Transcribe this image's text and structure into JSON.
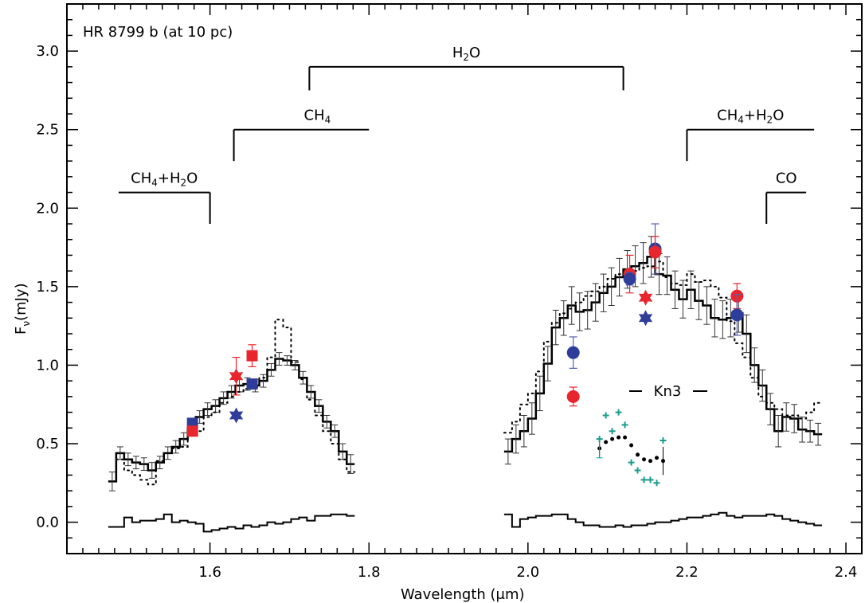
{
  "chart_data": {
    "type": "line",
    "title": "HR 8799 b (at 10 pc)",
    "xlabel": "Wavelength (μm)",
    "ylabel": "Fν(mJy)",
    "xlim": [
      1.42,
      2.42
    ],
    "ylim": [
      -0.2,
      3.3
    ],
    "x_ticks": [
      1.6,
      1.8,
      2.0,
      2.2,
      2.4
    ],
    "x_tick_labels": [
      "1.6",
      "1.8",
      "2.0",
      "2.2",
      "2.4"
    ],
    "y_ticks": [
      0.0,
      0.5,
      1.0,
      1.5,
      2.0,
      2.5,
      3.0
    ],
    "y_tick_labels": [
      "0.0",
      "0.5",
      "1.0",
      "1.5",
      "2.0",
      "2.5",
      "3.0"
    ],
    "grid": false,
    "bands": [
      {
        "label": "H2O",
        "label_parts": [
          "H",
          "2",
          "O"
        ],
        "x_start": 1.725,
        "x_end": 2.12,
        "y": 2.9,
        "tick_ends": [
          1.725,
          2.12
        ],
        "tick_to": 2.75
      },
      {
        "label": "CH4",
        "label_parts": [
          "CH",
          "4",
          ""
        ],
        "x_start": 1.63,
        "x_end": 1.8,
        "y": 2.5,
        "tick_ends": [
          1.63
        ],
        "tick_to": 2.3
      },
      {
        "label": "CH4+H2O",
        "label_parts": [
          "CH",
          "4",
          "+H",
          "2",
          "O"
        ],
        "x_start": 1.485,
        "x_end": 1.6,
        "y": 2.1,
        "tick_ends": [
          1.6
        ],
        "tick_to": 1.9
      },
      {
        "label": "CH4+H2O",
        "label_parts": [
          "CH",
          "4",
          "+H",
          "2",
          "O"
        ],
        "x_start": 2.2,
        "x_end": 2.36,
        "y": 2.5,
        "tick_ends": [
          2.2
        ],
        "tick_to": 2.3
      },
      {
        "label": "CO",
        "label_parts": [
          "CO"
        ],
        "x_start": 2.3,
        "x_end": 2.35,
        "y": 2.1,
        "tick_ends": [
          2.3
        ],
        "tick_to": 1.9
      }
    ],
    "kn3_label": "Kn3",
    "series": [
      {
        "style": "solid-step",
        "segments": [
          {
            "x": [
              1.477,
              1.487,
              1.497,
              1.507,
              1.517,
              1.527,
              1.537,
              1.547,
              1.557,
              1.567,
              1.577,
              1.587,
              1.597,
              1.607,
              1.617,
              1.627,
              1.637,
              1.647,
              1.657,
              1.667,
              1.677,
              1.687,
              1.697,
              1.707,
              1.717,
              1.727,
              1.737,
              1.747,
              1.757,
              1.767,
              1.777
            ],
            "y": [
              0.26,
              0.44,
              0.4,
              0.38,
              0.37,
              0.33,
              0.38,
              0.44,
              0.48,
              0.53,
              0.6,
              0.67,
              0.72,
              0.74,
              0.79,
              0.83,
              0.87,
              0.88,
              0.87,
              0.9,
              0.97,
              1.04,
              1.03,
              1.0,
              0.92,
              0.83,
              0.74,
              0.64,
              0.58,
              0.45,
              0.37
            ],
            "err": [
              0.06,
              0.04,
              0.04,
              0.04,
              0.04,
              0.05,
              0.04,
              0.04,
              0.04,
              0.04,
              0.04,
              0.04,
              0.04,
              0.04,
              0.04,
              0.04,
              0.04,
              0.04,
              0.04,
              0.04,
              0.04,
              0.04,
              0.03,
              0.03,
              0.04,
              0.04,
              0.04,
              0.04,
              0.04,
              0.05,
              0.06
            ]
          },
          {
            "x": [
              1.975,
              1.985,
              1.995,
              2.005,
              2.015,
              2.025,
              2.035,
              2.045,
              2.055,
              2.065,
              2.075,
              2.085,
              2.095,
              2.105,
              2.115,
              2.125,
              2.135,
              2.145,
              2.155,
              2.165,
              2.175,
              2.185,
              2.195,
              2.205,
              2.215,
              2.225,
              2.235,
              2.245,
              2.255,
              2.265,
              2.275,
              2.285,
              2.295,
              2.305,
              2.315,
              2.325,
              2.335,
              2.345,
              2.355,
              2.365
            ],
            "y": [
              0.45,
              0.53,
              0.58,
              0.66,
              0.82,
              1.01,
              1.24,
              1.3,
              1.38,
              1.34,
              1.35,
              1.4,
              1.46,
              1.5,
              1.56,
              1.61,
              1.63,
              1.65,
              1.69,
              1.58,
              1.57,
              1.48,
              1.42,
              1.48,
              1.41,
              1.38,
              1.3,
              1.29,
              1.3,
              1.33,
              1.2,
              1.0,
              0.87,
              0.72,
              0.58,
              0.67,
              0.66,
              0.59,
              0.58,
              0.56
            ],
            "err": [
              0.08,
              0.09,
              0.1,
              0.1,
              0.11,
              0.11,
              0.11,
              0.11,
              0.12,
              0.12,
              0.12,
              0.12,
              0.12,
              0.12,
              0.12,
              0.12,
              0.13,
              0.13,
              0.13,
              0.13,
              0.12,
              0.12,
              0.12,
              0.12,
              0.12,
              0.12,
              0.12,
              0.12,
              0.12,
              0.12,
              0.12,
              0.11,
              0.1,
              0.1,
              0.1,
              0.09,
              0.09,
              0.08,
              0.07,
              0.07
            ]
          }
        ]
      },
      {
        "style": "dotted-step",
        "segments": [
          {
            "x": [
              1.487,
              1.497,
              1.507,
              1.517,
              1.527,
              1.537,
              1.547,
              1.557,
              1.567,
              1.577,
              1.587,
              1.597,
              1.607,
              1.617,
              1.627,
              1.637,
              1.647,
              1.657,
              1.667,
              1.677,
              1.687,
              1.697,
              1.707,
              1.717,
              1.727,
              1.737,
              1.747,
              1.757,
              1.767,
              1.777
            ],
            "y": [
              0.4,
              0.33,
              0.3,
              0.27,
              0.24,
              0.39,
              0.44,
              0.47,
              0.48,
              0.55,
              0.58,
              0.67,
              0.7,
              0.76,
              0.8,
              0.83,
              0.85,
              0.86,
              0.92,
              1.05,
              1.29,
              1.24,
              1.02,
              0.91,
              0.78,
              0.68,
              0.58,
              0.5,
              0.4,
              0.32
            ]
          },
          {
            "x": [
              1.975,
              1.985,
              1.995,
              2.005,
              2.015,
              2.025,
              2.035,
              2.045,
              2.055,
              2.065,
              2.075,
              2.085,
              2.095,
              2.105,
              2.115,
              2.125,
              2.135,
              2.145,
              2.155,
              2.165,
              2.175,
              2.185,
              2.195,
              2.205,
              2.215,
              2.225,
              2.235,
              2.245,
              2.255,
              2.265,
              2.275,
              2.285,
              2.295,
              2.305,
              2.315,
              2.325,
              2.335,
              2.345,
              2.355,
              2.365
            ],
            "y": [
              0.57,
              0.64,
              0.75,
              0.82,
              0.96,
              1.15,
              1.27,
              1.33,
              1.36,
              1.4,
              1.44,
              1.47,
              1.5,
              1.55,
              1.58,
              1.57,
              1.6,
              1.62,
              1.63,
              1.66,
              1.56,
              1.52,
              1.51,
              1.58,
              1.53,
              1.54,
              1.5,
              1.43,
              1.28,
              1.14,
              1.05,
              0.92,
              0.8,
              0.76,
              0.72,
              0.68,
              0.68,
              0.66,
              0.7,
              0.76
            ]
          }
        ]
      },
      {
        "style": "residual-step",
        "segments": [
          {
            "x": [
              1.477,
              1.487,
              1.497,
              1.507,
              1.517,
              1.527,
              1.537,
              1.547,
              1.557,
              1.567,
              1.577,
              1.587,
              1.597,
              1.607,
              1.617,
              1.627,
              1.637,
              1.647,
              1.657,
              1.667,
              1.677,
              1.687,
              1.697,
              1.707,
              1.717,
              1.727,
              1.737,
              1.747,
              1.757,
              1.767,
              1.777
            ],
            "y": [
              -0.03,
              -0.03,
              0.03,
              0.0,
              0.01,
              0.01,
              0.02,
              0.05,
              0.0,
              0.01,
              0.0,
              -0.01,
              -0.06,
              -0.05,
              -0.04,
              -0.03,
              -0.04,
              -0.02,
              -0.03,
              -0.02,
              0.0,
              -0.01,
              0.0,
              0.02,
              0.03,
              0.01,
              0.04,
              0.04,
              0.05,
              0.05,
              0.04
            ]
          },
          {
            "x": [
              1.975,
              1.985,
              1.995,
              2.005,
              2.015,
              2.025,
              2.035,
              2.045,
              2.055,
              2.065,
              2.075,
              2.085,
              2.095,
              2.105,
              2.115,
              2.125,
              2.135,
              2.145,
              2.155,
              2.165,
              2.175,
              2.185,
              2.195,
              2.205,
              2.215,
              2.225,
              2.235,
              2.245,
              2.255,
              2.265,
              2.275,
              2.285,
              2.295,
              2.305,
              2.315,
              2.325,
              2.335,
              2.345,
              2.355,
              2.365
            ],
            "y": [
              0.05,
              -0.03,
              0.02,
              0.03,
              0.04,
              0.04,
              0.05,
              0.05,
              0.02,
              0.0,
              -0.02,
              -0.02,
              -0.03,
              -0.03,
              -0.02,
              -0.03,
              -0.02,
              -0.02,
              -0.01,
              0.0,
              0.0,
              0.01,
              0.02,
              0.03,
              0.03,
              0.04,
              0.05,
              0.06,
              0.04,
              0.03,
              0.04,
              0.04,
              0.04,
              0.05,
              0.04,
              0.02,
              0.01,
              0.0,
              -0.01,
              -0.02
            ]
          }
        ]
      },
      {
        "style": "markers",
        "points": [
          {
            "x": 1.578,
            "y": 0.63,
            "err": 0.02,
            "marker": "square",
            "color": "blue"
          },
          {
            "x": 1.578,
            "y": 0.58,
            "err": 0.03,
            "marker": "square",
            "color": "red"
          },
          {
            "x": 1.633,
            "y": 0.93,
            "err": 0.12,
            "marker": "star",
            "color": "red"
          },
          {
            "x": 1.633,
            "y": 0.68,
            "err": 0.0,
            "marker": "star",
            "color": "blue"
          },
          {
            "x": 1.653,
            "y": 1.06,
            "err": 0.07,
            "marker": "square",
            "color": "red"
          },
          {
            "x": 1.653,
            "y": 0.88,
            "err": 0.02,
            "marker": "square",
            "color": "blue"
          },
          {
            "x": 2.057,
            "y": 1.08,
            "err": 0.1,
            "marker": "circle",
            "color": "blue"
          },
          {
            "x": 2.057,
            "y": 0.8,
            "err": 0.06,
            "marker": "circle",
            "color": "red"
          },
          {
            "x": 2.128,
            "y": 1.58,
            "err": 0.12,
            "marker": "circle",
            "color": "red"
          },
          {
            "x": 2.128,
            "y": 1.55,
            "err": 0.04,
            "marker": "circle",
            "color": "blue"
          },
          {
            "x": 2.148,
            "y": 1.43,
            "err": 0.0,
            "marker": "star",
            "color": "red"
          },
          {
            "x": 2.148,
            "y": 1.3,
            "err": 0.0,
            "marker": "star",
            "color": "blue"
          },
          {
            "x": 2.16,
            "y": 1.74,
            "err": 0.16,
            "marker": "circle",
            "color": "blue"
          },
          {
            "x": 2.16,
            "y": 1.72,
            "err": 0.1,
            "marker": "circle",
            "color": "red"
          },
          {
            "x": 2.263,
            "y": 1.44,
            "err": 0.08,
            "marker": "circle",
            "color": "red"
          },
          {
            "x": 2.263,
            "y": 1.32,
            "err": 0.13,
            "marker": "circle",
            "color": "blue"
          }
        ]
      },
      {
        "style": "kn3-dots",
        "x": [
          2.09,
          2.098,
          2.106,
          2.114,
          2.122,
          2.13,
          2.138,
          2.146,
          2.154,
          2.162,
          2.17
        ],
        "y": [
          0.47,
          0.51,
          0.53,
          0.54,
          0.54,
          0.49,
          0.43,
          0.4,
          0.39,
          0.41,
          0.39
        ],
        "err_first": 0.06,
        "err_last": 0.09
      },
      {
        "style": "kn3-crosses",
        "x": [
          2.09,
          2.098,
          2.106,
          2.114,
          2.122,
          2.13,
          2.138,
          2.146,
          2.154,
          2.162,
          2.17
        ],
        "y": [
          0.53,
          0.68,
          0.58,
          0.7,
          0.62,
          0.38,
          0.33,
          0.27,
          0.27,
          0.25,
          0.52
        ],
        "err_first": 0.06
      }
    ],
    "colors": {
      "red": "#e8262e",
      "blue": "#2e3d99",
      "teal": "#1a9c8c",
      "errbar_red": "#e8262e",
      "errbar_blue": "#5860b0"
    }
  }
}
